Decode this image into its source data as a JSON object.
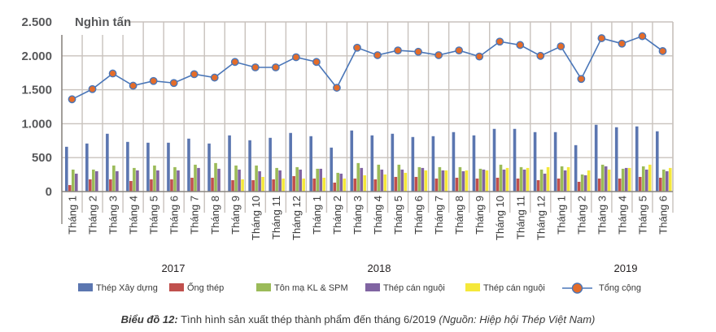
{
  "chart_data": {
    "type": "bar",
    "title": "",
    "ylabel": "Nghìn tấn",
    "xlabel": "",
    "ylim": [
      0,
      2500
    ],
    "yticks": [
      {
        "value": 0,
        "label": "0"
      },
      {
        "value": 500,
        "label": "500"
      },
      {
        "value": 1000,
        "label": "1.000"
      },
      {
        "value": 1500,
        "label": "1.500"
      },
      {
        "value": 2000,
        "label": "2.000"
      },
      {
        "value": 2500,
        "label": "2.500"
      }
    ],
    "grid": true,
    "legend_position": "bottom",
    "categories": [
      "Tháng 1",
      "Tháng 2",
      "Tháng 3",
      "Tháng 4",
      "Tháng 5",
      "Tháng 6",
      "Tháng 7",
      "Tháng 8",
      "Tháng 9",
      "Tháng 10",
      "Tháng 11",
      "Tháng 12",
      "Tháng 1",
      "Tháng 2",
      "Tháng 3",
      "Tháng 4",
      "Tháng 5",
      "Tháng 6",
      "Tháng 7",
      "Tháng 8",
      "Tháng 9",
      "Tháng 10",
      "Tháng 11",
      "Tháng 12",
      "Tháng 1",
      "Tháng 2",
      "Tháng 3",
      "Tháng 4",
      "Tháng 5",
      "Tháng 6"
    ],
    "year_groups": [
      {
        "label": "2017",
        "start": 0,
        "end": 11
      },
      {
        "label": "2018",
        "start": 12,
        "end": 23
      },
      {
        "label": "2019",
        "start": 24,
        "end": 29
      }
    ],
    "series": [
      {
        "name": "Thép Xây dựng",
        "type": "bar",
        "color": "#5b76b0",
        "values": [
          660,
          708,
          852,
          732,
          720,
          720,
          780,
          708,
          828,
          756,
          792,
          864,
          816,
          648,
          900,
          828,
          852,
          804,
          816,
          876,
          828,
          924,
          924,
          876,
          876,
          684,
          984,
          948,
          960,
          888
        ]
      },
      {
        "name": "Ống thép",
        "type": "bar",
        "color": "#c0504d",
        "values": [
          96,
          180,
          180,
          156,
          180,
          180,
          204,
          204,
          168,
          168,
          180,
          228,
          192,
          132,
          192,
          180,
          216,
          216,
          192,
          204,
          192,
          204,
          192,
          168,
          192,
          144,
          192,
          192,
          216,
          204
        ]
      },
      {
        "name": "Tôn mạ KL & SPM",
        "type": "bar",
        "color": "#9bbb59",
        "values": [
          324,
          324,
          384,
          348,
          384,
          360,
          396,
          420,
          384,
          384,
          348,
          360,
          336,
          276,
          420,
          396,
          396,
          360,
          360,
          360,
          336,
          396,
          360,
          324,
          372,
          252,
          396,
          336,
          372,
          324
        ]
      },
      {
        "name": "Thép cán nguội",
        "type": "bar",
        "color": "#8064a2",
        "values": [
          264,
          300,
          300,
          312,
          312,
          312,
          348,
          336,
          324,
          300,
          312,
          324,
          336,
          264,
          348,
          324,
          324,
          348,
          312,
          300,
          324,
          324,
          324,
          264,
          312,
          240,
          372,
          348,
          324,
          300
        ]
      },
      {
        "name": "Thép cán nguội",
        "type": "bar",
        "color": "#f5e83a",
        "values": [
          0,
          0,
          0,
          0,
          0,
          0,
          0,
          0,
          180,
          216,
          192,
          192,
          204,
          192,
          240,
          252,
          276,
          312,
          312,
          312,
          312,
          348,
          348,
          360,
          360,
          312,
          324,
          348,
          396,
          348
        ]
      },
      {
        "name": "Tổng cộng",
        "type": "line",
        "color": "#4a76b8",
        "marker_color": "#e46c2a",
        "values": [
          1360,
          1510,
          1740,
          1560,
          1630,
          1600,
          1730,
          1680,
          1910,
          1830,
          1830,
          1980,
          1910,
          1530,
          2120,
          2010,
          2080,
          2060,
          2010,
          2080,
          1990,
          2210,
          2160,
          2000,
          2140,
          1660,
          2260,
          2180,
          2290,
          2070
        ]
      }
    ]
  },
  "caption": {
    "lead": "Biểu đồ 12:",
    "text": " Tình hình sản xuất thép thành phẩm đến tháng 6/2019 ",
    "source": "(Nguồn: Hiệp hội Thép Việt Nam)"
  },
  "colors": {
    "grid": "#c8c2bd",
    "axis": "#8a8580"
  }
}
